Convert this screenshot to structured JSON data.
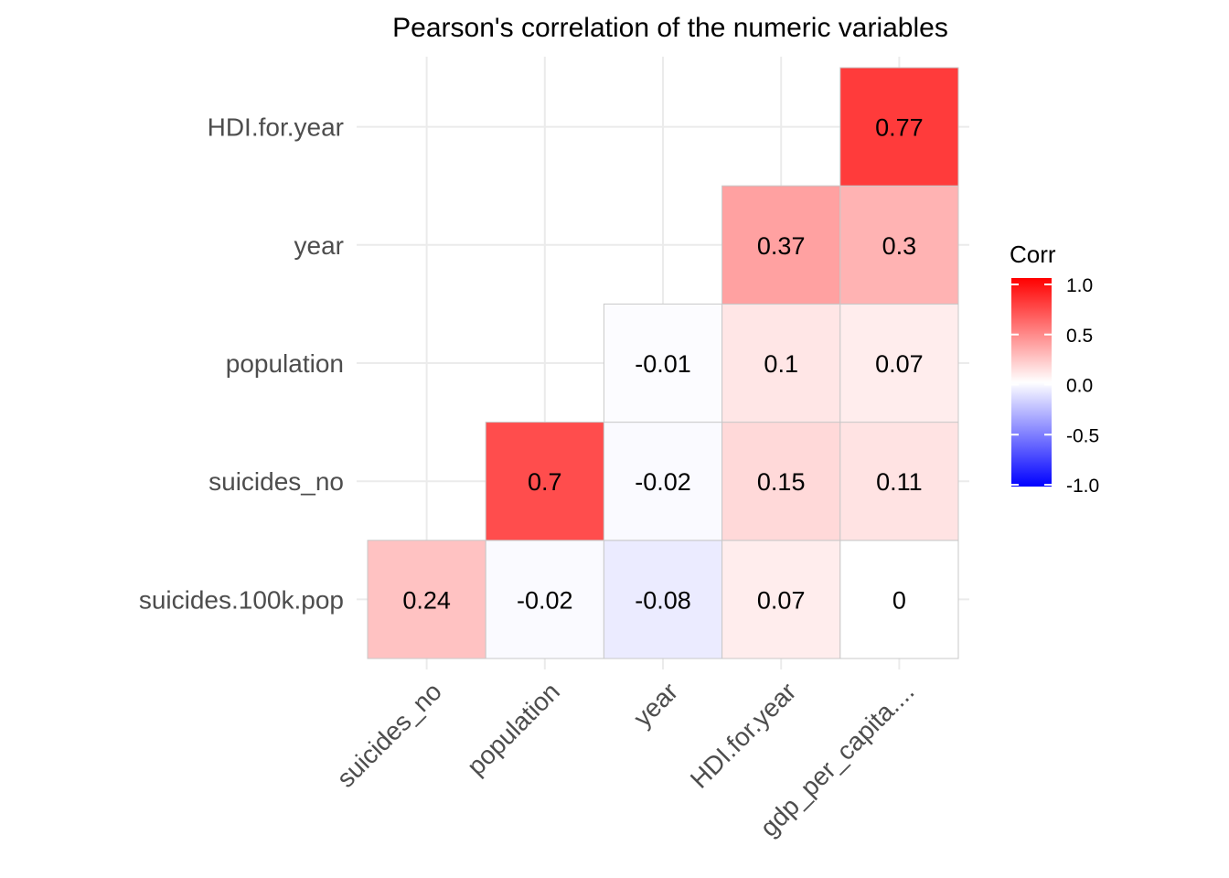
{
  "chart_data": {
    "type": "heatmap",
    "title": "Pearson's correlation of the numeric variables",
    "x_categories": [
      "suicides_no",
      "population",
      "year",
      "HDI.for.year",
      "gdp_per_capita...."
    ],
    "y_categories": [
      "suicides.100k.pop",
      "suicides_no",
      "population",
      "year",
      "HDI.for.year"
    ],
    "cells": [
      {
        "x": "suicides_no",
        "y": "suicides.100k.pop",
        "value": 0.24,
        "label": "0.24"
      },
      {
        "x": "population",
        "y": "suicides.100k.pop",
        "value": -0.02,
        "label": "-0.02"
      },
      {
        "x": "year",
        "y": "suicides.100k.pop",
        "value": -0.08,
        "label": "-0.08"
      },
      {
        "x": "HDI.for.year",
        "y": "suicides.100k.pop",
        "value": 0.07,
        "label": "0.07"
      },
      {
        "x": "gdp_per_capita....",
        "y": "suicides.100k.pop",
        "value": 0,
        "label": "0"
      },
      {
        "x": "population",
        "y": "suicides_no",
        "value": 0.7,
        "label": "0.7"
      },
      {
        "x": "year",
        "y": "suicides_no",
        "value": -0.02,
        "label": "-0.02"
      },
      {
        "x": "HDI.for.year",
        "y": "suicides_no",
        "value": 0.15,
        "label": "0.15"
      },
      {
        "x": "gdp_per_capita....",
        "y": "suicides_no",
        "value": 0.11,
        "label": "0.11"
      },
      {
        "x": "year",
        "y": "population",
        "value": -0.01,
        "label": "-0.01"
      },
      {
        "x": "HDI.for.year",
        "y": "population",
        "value": 0.1,
        "label": "0.1"
      },
      {
        "x": "gdp_per_capita....",
        "y": "population",
        "value": 0.07,
        "label": "0.07"
      },
      {
        "x": "HDI.for.year",
        "y": "year",
        "value": 0.37,
        "label": "0.37"
      },
      {
        "x": "gdp_per_capita....",
        "y": "year",
        "value": 0.3,
        "label": "0.3"
      },
      {
        "x": "gdp_per_capita....",
        "y": "HDI.for.year",
        "value": 0.77,
        "label": "0.77"
      }
    ],
    "legend": {
      "title": "Corr",
      "range": [
        -1,
        1
      ],
      "ticks": [
        {
          "value": 1.0,
          "label": "1.0"
        },
        {
          "value": 0.5,
          "label": "0.5"
        },
        {
          "value": 0.0,
          "label": "0.0"
        },
        {
          "value": -0.5,
          "label": "-0.5"
        },
        {
          "value": -1.0,
          "label": "-1.0"
        }
      ],
      "colors": {
        "low": "#0000ff",
        "mid": "#ffffff",
        "high": "#ff0000"
      },
      "placement": "right"
    },
    "grid": true
  }
}
